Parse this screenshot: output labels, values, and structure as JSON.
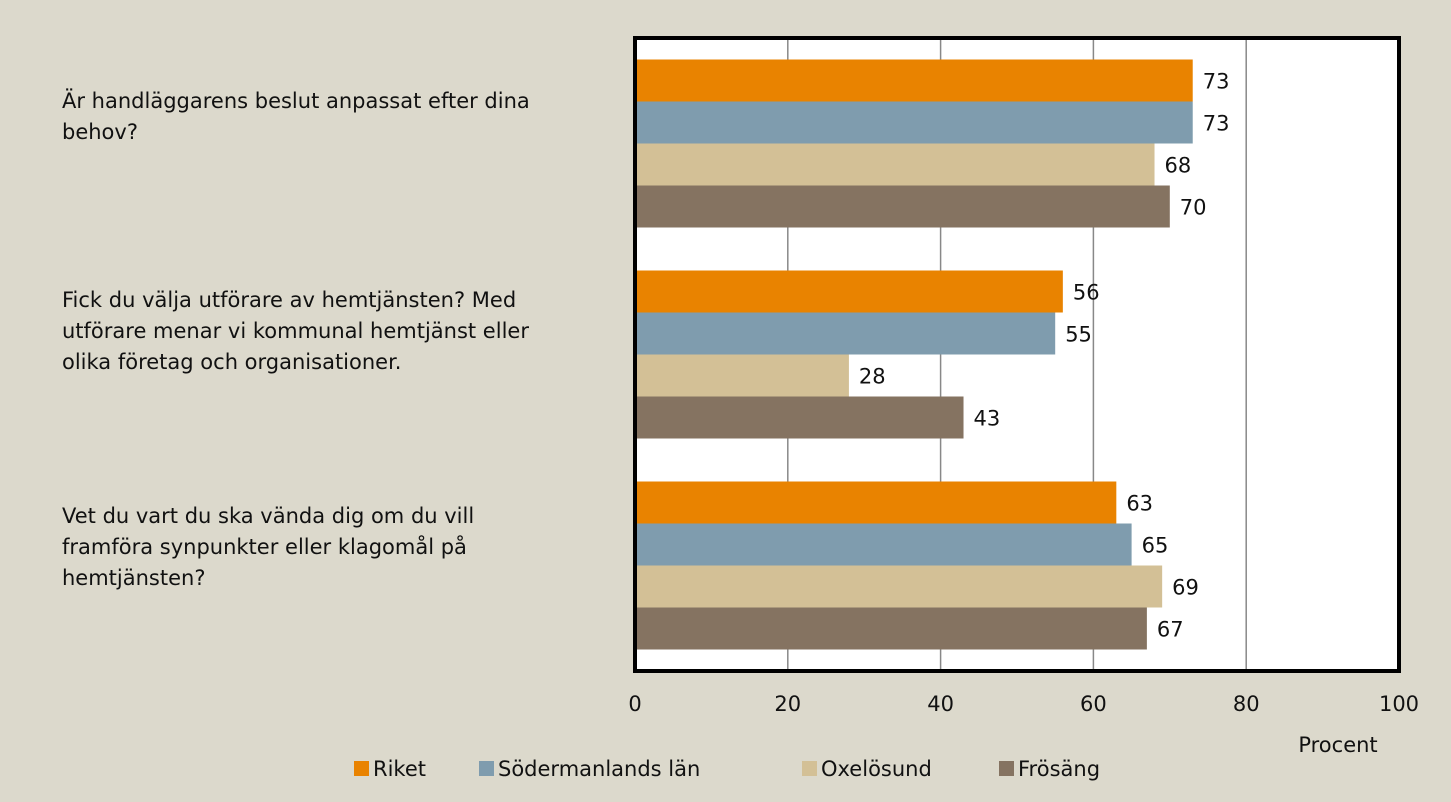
{
  "chart_data": {
    "type": "barh",
    "categories": [
      "Är handläggarens beslut anpassat efter dina behov?",
      "Fick du välja utförare av hemtjänsten? Med utförare menar vi kommunal hemtjänst eller olika företag och organisationer.",
      "Vet du vart du ska vända dig om du vill framföra synpunkter eller klagomål på hemtjänsten?"
    ],
    "series": [
      {
        "name": "Riket",
        "color": "#e98300",
        "values": [
          73,
          56,
          63
        ]
      },
      {
        "name": "Södermanlands län",
        "color": "#7f9cae",
        "values": [
          73,
          55,
          65
        ]
      },
      {
        "name": "Oxelösund",
        "color": "#d3c096",
        "values": [
          68,
          28,
          69
        ]
      },
      {
        "name": "Frösäng",
        "color": "#857361",
        "values": [
          70,
          43,
          67
        ]
      }
    ],
    "xlabel": "Procent",
    "xlim": [
      0,
      100
    ],
    "xticks": [
      0,
      20,
      40,
      60,
      80,
      100
    ],
    "grid": true,
    "legend": "bottom"
  }
}
